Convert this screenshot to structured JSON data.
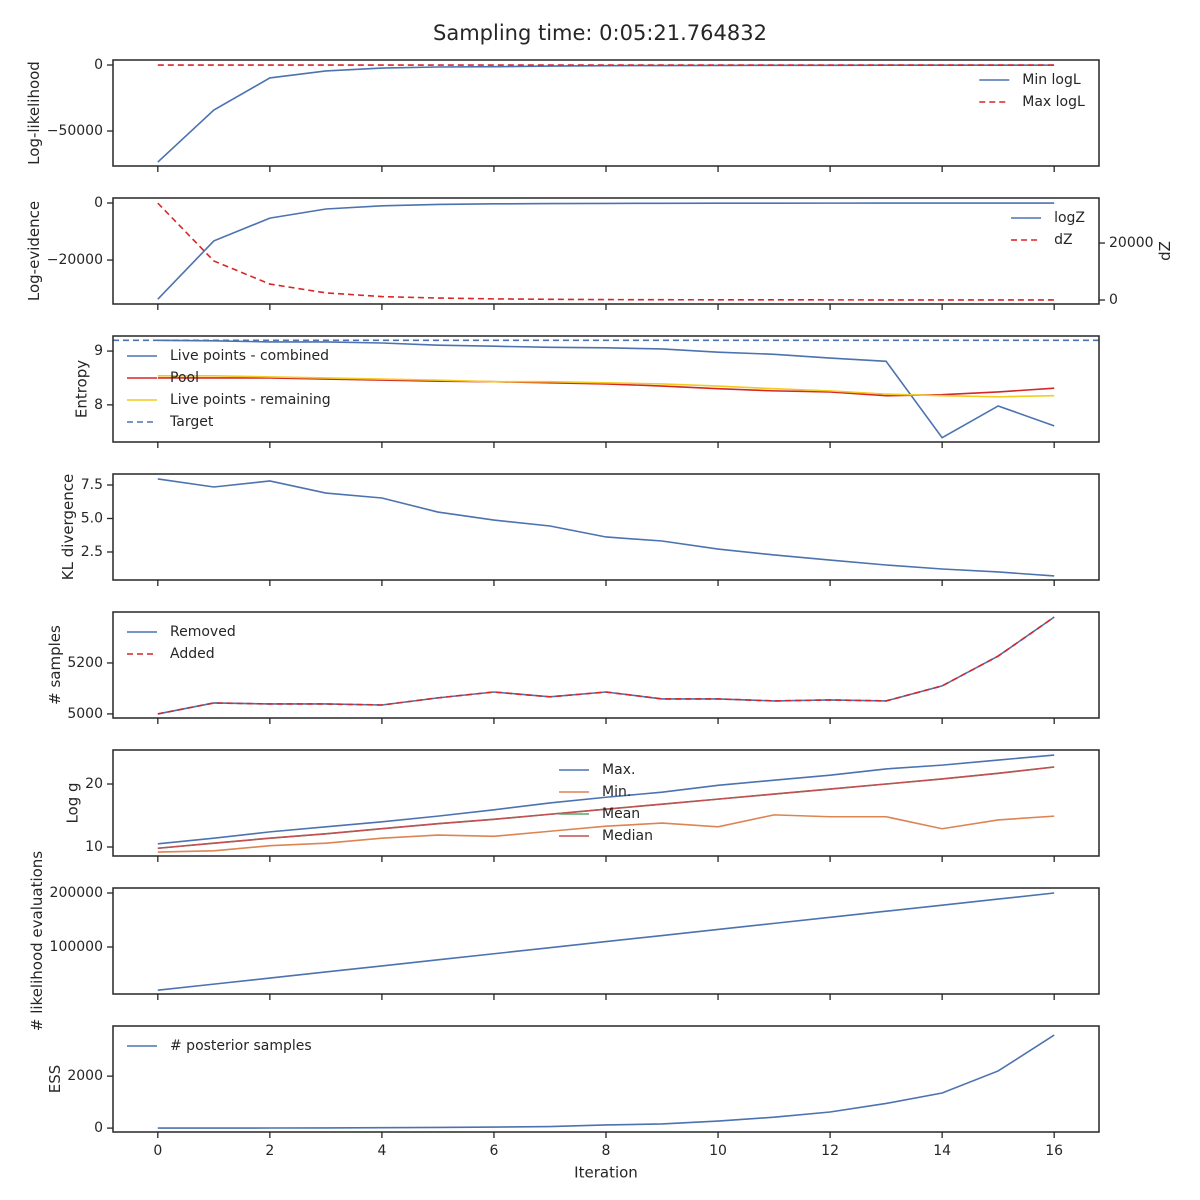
{
  "title": "Sampling time: 0:05:21.764832",
  "chart_data": [
    {
      "type": "line",
      "ylabel": "Log-likelihood",
      "x": [
        0,
        1,
        2,
        3,
        4,
        5,
        6,
        7,
        8,
        9,
        10,
        11,
        12,
        13,
        14,
        15,
        16
      ],
      "xlim": [
        -0.8,
        16.8
      ],
      "xticks": [
        0,
        2,
        4,
        6,
        8,
        10,
        12,
        14,
        16
      ],
      "ylim": [
        -76500,
        3800
      ],
      "yticks": [
        {
          "value": -50000,
          "label": "−50000"
        },
        0
      ],
      "legend": "upper right",
      "series": [
        {
          "name": "Min logL",
          "color": "#4c72b0",
          "values": [
            -73500,
            -34100,
            -9800,
            -4500,
            -2300,
            -1500,
            -1300,
            -800,
            -500,
            -400,
            -300,
            -250,
            -200,
            -150,
            -120,
            -100,
            -80
          ]
        },
        {
          "name": "Max logL",
          "color": "#d62728",
          "dashed": true,
          "values": [
            0,
            0,
            0,
            0,
            0,
            0,
            0,
            0,
            0,
            0,
            0,
            0,
            0,
            0,
            0,
            0,
            0
          ]
        }
      ]
    },
    {
      "type": "line",
      "ylabel": "Log-evidence",
      "y2label": "dZ",
      "x": [
        0,
        1,
        2,
        3,
        4,
        5,
        6,
        7,
        8,
        9,
        10,
        11,
        12,
        13,
        14,
        15,
        16
      ],
      "xlim": [
        -0.8,
        16.8
      ],
      "xticks": [
        0,
        2,
        4,
        6,
        8,
        10,
        12,
        14,
        16
      ],
      "ylim": [
        -35400,
        1750
      ],
      "yticks": [
        {
          "value": -20000,
          "label": "−20000"
        },
        0
      ],
      "y2lim": [
        -1400,
        35800
      ],
      "y2ticks": [
        0,
        20000
      ],
      "legend": "upper right",
      "series": [
        {
          "name": "logZ",
          "color": "#4c72b0",
          "values": [
            -33700,
            -13300,
            -5300,
            -2100,
            -1000,
            -500,
            -300,
            -200,
            -150,
            -100,
            -80,
            -60,
            -50,
            -40,
            -30,
            -25,
            -20
          ]
        },
        {
          "name": "dZ",
          "color": "#d62728",
          "dashed": true,
          "axis": "y2",
          "values": [
            34000,
            13700,
            5600,
            2500,
            1200,
            700,
            400,
            250,
            150,
            100,
            80,
            60,
            50,
            40,
            30,
            25,
            20
          ]
        }
      ]
    },
    {
      "type": "line",
      "ylabel": "Entropy",
      "x": [
        0,
        1,
        2,
        3,
        4,
        5,
        6,
        7,
        8,
        9,
        10,
        11,
        12,
        13,
        14,
        15,
        16
      ],
      "xlim": [
        -0.8,
        16.8
      ],
      "xticks": [
        0,
        2,
        4,
        6,
        8,
        10,
        12,
        14,
        16
      ],
      "ylim": [
        7.31,
        9.28
      ],
      "yticks": [
        8,
        9
      ],
      "legend": "upper left",
      "series": [
        {
          "name": "Live points - combined",
          "color": "#4c72b0",
          "values": [
            9.2,
            9.19,
            9.17,
            9.17,
            9.15,
            9.11,
            9.09,
            9.07,
            9.06,
            9.04,
            8.98,
            8.94,
            8.87,
            8.81,
            7.39,
            7.98,
            7.61
          ]
        },
        {
          "name": "Pool",
          "color": "#d62728",
          "values": [
            8.5,
            8.5,
            8.5,
            8.48,
            8.46,
            8.44,
            8.43,
            8.41,
            8.39,
            8.35,
            8.3,
            8.26,
            8.24,
            8.17,
            8.19,
            8.24,
            8.31
          ]
        },
        {
          "name": "Live points - remaining",
          "color": "#f2cc1c",
          "values": [
            8.54,
            8.54,
            8.52,
            8.5,
            8.48,
            8.46,
            8.43,
            8.43,
            8.41,
            8.39,
            8.35,
            8.3,
            8.26,
            8.2,
            8.17,
            8.15,
            8.17
          ]
        },
        {
          "name": "Target",
          "color": "#4c72b0",
          "dashed": true,
          "hline": 9.2
        }
      ]
    },
    {
      "type": "line",
      "ylabel": "KL divergence",
      "x": [
        0,
        1,
        2,
        3,
        4,
        5,
        6,
        7,
        8,
        9,
        10,
        11,
        12,
        13,
        14,
        15,
        16
      ],
      "xlim": [
        -0.8,
        16.8
      ],
      "xticks": [
        0,
        2,
        4,
        6,
        8,
        10,
        12,
        14,
        16
      ],
      "ylim": [
        0.41,
        8.32
      ],
      "yticks": [
        2.5,
        {
          "value": 5,
          "label": "5.0"
        },
        7.5
      ],
      "series": [
        {
          "color": "#4c72b0",
          "values": [
            7.95,
            7.35,
            7.8,
            6.9,
            6.53,
            5.48,
            4.88,
            4.44,
            3.62,
            3.32,
            2.72,
            2.28,
            1.9,
            1.53,
            1.23,
            1.01,
            0.71
          ]
        }
      ]
    },
    {
      "type": "line",
      "ylabel": "# samples",
      "x": [
        0,
        1,
        2,
        3,
        4,
        5,
        6,
        7,
        8,
        9,
        10,
        11,
        12,
        13,
        14,
        15,
        16
      ],
      "xlim": [
        -0.8,
        16.8
      ],
      "xticks": [
        0,
        2,
        4,
        6,
        8,
        10,
        12,
        14,
        16
      ],
      "ylim": [
        4984,
        5400
      ],
      "yticks": [
        5000,
        5200
      ],
      "legend": "upper left",
      "series": [
        {
          "name": "Removed",
          "color": "#4c72b0",
          "values": [
            5000,
            5043,
            5039,
            5039,
            5035,
            5063,
            5086,
            5067,
            5086,
            5059,
            5059,
            5051,
            5055,
            5051,
            5110,
            5227,
            5380
          ]
        },
        {
          "name": "Added",
          "color": "#d62728",
          "dashed": true,
          "values": [
            5000,
            5043,
            5039,
            5039,
            5035,
            5063,
            5086,
            5067,
            5086,
            5059,
            5059,
            5051,
            5055,
            5051,
            5110,
            5227,
            5380
          ]
        }
      ]
    },
    {
      "type": "line",
      "ylabel": "Log g",
      "x": [
        0,
        1,
        2,
        3,
        4,
        5,
        6,
        7,
        8,
        9,
        10,
        11,
        12,
        13,
        14,
        15,
        16
      ],
      "xlim": [
        -0.8,
        16.8
      ],
      "xticks": [
        0,
        2,
        4,
        6,
        8,
        10,
        12,
        14,
        16
      ],
      "ylim": [
        8.57,
        25.4
      ],
      "yticks": [
        10,
        20
      ],
      "legend": "upper center",
      "series": [
        {
          "name": "Max.",
          "color": "#4c72b0",
          "values": [
            10.5,
            11.4,
            12.4,
            13.2,
            14.0,
            14.9,
            15.9,
            17.0,
            17.9,
            18.7,
            19.8,
            20.6,
            21.4,
            22.4,
            23.0,
            23.8,
            24.6
          ]
        },
        {
          "name": "Min.",
          "color": "#dd8452",
          "values": [
            9.2,
            9.4,
            10.2,
            10.6,
            11.4,
            11.9,
            11.7,
            12.5,
            13.3,
            13.8,
            13.2,
            15.1,
            14.8,
            14.8,
            12.9,
            14.3,
            14.9
          ]
        },
        {
          "name": "Mean",
          "color": "#55a868",
          "values": [
            9.8,
            10.6,
            11.4,
            12.1,
            12.9,
            13.7,
            14.4,
            15.2,
            16.0,
            16.8,
            17.6,
            18.4,
            19.2,
            20.0,
            20.8,
            21.7,
            22.7
          ]
        },
        {
          "name": "Median",
          "color": "#c44e52",
          "values": [
            9.8,
            10.6,
            11.4,
            12.1,
            12.9,
            13.7,
            14.4,
            15.2,
            16.0,
            16.8,
            17.6,
            18.4,
            19.2,
            20.0,
            20.8,
            21.7,
            22.7
          ]
        }
      ]
    },
    {
      "type": "line",
      "ylabel": "# likelihood evaluations",
      "x": [
        0,
        1,
        2,
        3,
        4,
        5,
        6,
        7,
        8,
        9,
        10,
        11,
        12,
        13,
        14,
        15,
        16
      ],
      "xlim": [
        -0.8,
        16.8
      ],
      "xticks": [
        0,
        2,
        4,
        6,
        8,
        10,
        12,
        14,
        16
      ],
      "ylim": [
        12960,
        209260
      ],
      "yticks": [
        100000,
        200000
      ],
      "series": [
        {
          "color": "#4c72b0",
          "values": [
            20000,
            31250,
            42500,
            53750,
            65000,
            76250,
            87500,
            98750,
            110000,
            121250,
            132500,
            143750,
            155000,
            166250,
            177500,
            188750,
            200000
          ]
        }
      ]
    },
    {
      "type": "line",
      "ylabel": "ESS",
      "xlabel": "Iteration",
      "x": [
        0,
        1,
        2,
        3,
        4,
        5,
        6,
        7,
        8,
        9,
        10,
        11,
        12,
        13,
        14,
        15,
        16
      ],
      "xlim": [
        -0.8,
        16.8
      ],
      "xticks": [
        0,
        2,
        4,
        6,
        8,
        10,
        12,
        14,
        16
      ],
      "ylim": [
        -150,
        3930
      ],
      "yticks": [
        0,
        2000
      ],
      "legend": "upper left",
      "series": [
        {
          "name": "# posterior samples",
          "color": "#4c72b0",
          "values": [
            0,
            2,
            4,
            8,
            15,
            25,
            40,
            60,
            120,
            160,
            270,
            420,
            620,
            950,
            1350,
            2200,
            3580
          ]
        }
      ]
    }
  ]
}
